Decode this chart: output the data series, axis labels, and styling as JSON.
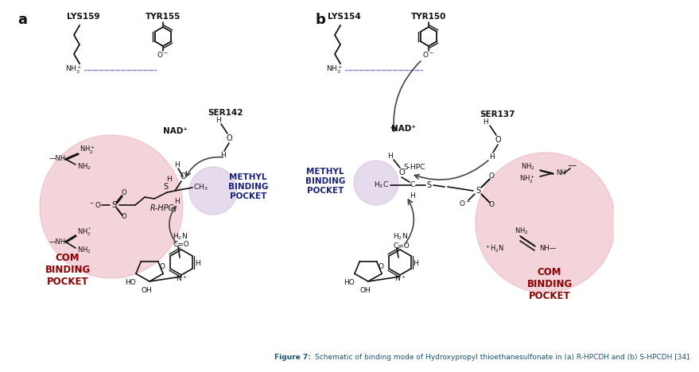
{
  "figure_caption": "Figure 7: Schematic of binding mode of Hydroxypropyl thioethanesulfonate in (a) R-HPCDH and (b) S-HPCDH [34].",
  "caption_color": "#1a5276",
  "bg_color": "#ffffff",
  "panel_a": {
    "label": "a",
    "lys_label": "LYS159",
    "tyr_label": "TYR155",
    "ser_label": "SER142",
    "nad_label": "NAD⁺",
    "hpc_label": "R-HPC",
    "methyl_label": "METHYL\nBINDING\nPOCKET",
    "com_label": "COM\nBINDING\nPOCKET",
    "com_circle_color": "#e8a0b0",
    "methyl_circle_color": "#c8b0d8",
    "com_circle_alpha": 0.45,
    "methyl_circle_alpha": 0.45,
    "label_color_methyl": "#1a237e",
    "label_color_com": "#8b0000"
  },
  "panel_b": {
    "label": "b",
    "lys_label": "LYS154",
    "tyr_label": "TYR150",
    "ser_label": "SER137",
    "nad_label": "NAD⁺",
    "hpc_label": "S-HPC",
    "methyl_label": "METHYL\nBINDING\nPOCKET",
    "com_label": "COM\nBINDING\nPOCKET",
    "com_circle_color": "#e8a0b0",
    "methyl_circle_color": "#c8b0d8",
    "com_circle_alpha": 0.45,
    "methyl_circle_alpha": 0.45,
    "label_color_methyl": "#1a237e",
    "label_color_com": "#8b0000"
  },
  "dash_color": "#8888cc",
  "arrow_color": "#444444",
  "sc": "#111111"
}
